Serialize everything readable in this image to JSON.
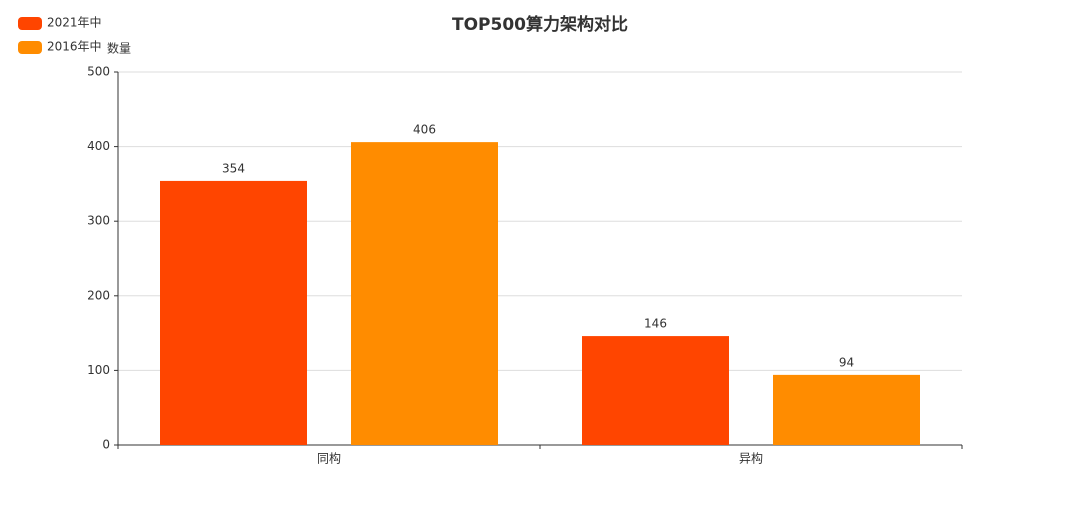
{
  "chart_data": {
    "type": "bar",
    "title": "TOP500算力架构对比",
    "y_label": "数量",
    "categories": [
      "同构",
      "异构"
    ],
    "series": [
      {
        "name": "2021年中",
        "color": "#ff4500",
        "values": [
          354,
          146
        ]
      },
      {
        "name": "2016年中",
        "color": "#ff8c00",
        "values": [
          406,
          94
        ]
      }
    ],
    "ylim": [
      0,
      500
    ],
    "yticks": [
      0,
      100,
      200,
      300,
      400,
      500
    ],
    "grid": true,
    "legend": "top-left"
  }
}
